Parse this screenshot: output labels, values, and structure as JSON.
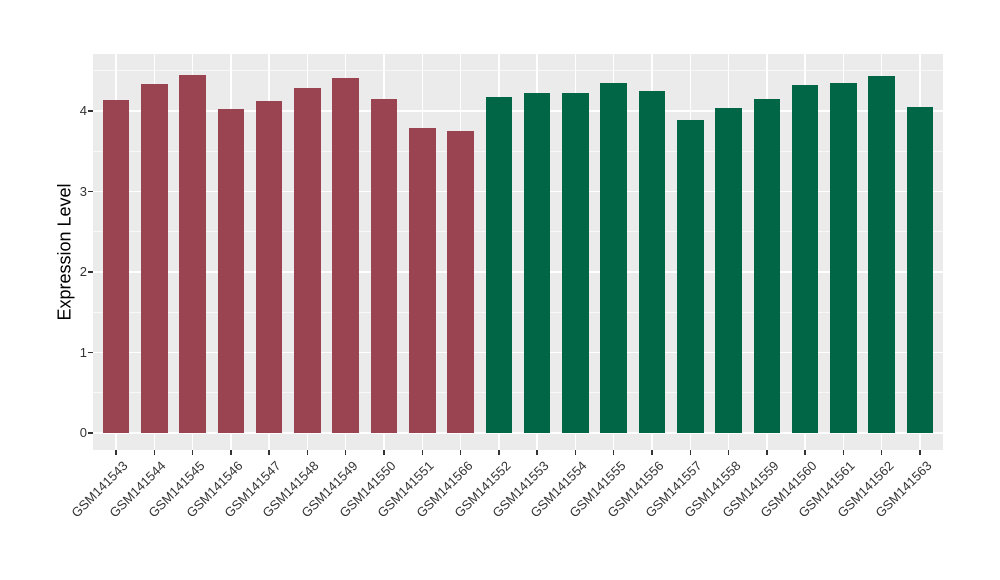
{
  "chart_data": {
    "type": "bar",
    "title": "",
    "xlabel": "",
    "ylabel": "Expression Level",
    "ylim": [
      0,
      4.7
    ],
    "yticks": [
      0,
      1,
      2,
      3,
      4
    ],
    "grid": true,
    "legend": "none",
    "panel_background": "#EBEBEB",
    "gridline_color": "#FFFFFF",
    "categories": [
      "GSM141543",
      "GSM141544",
      "GSM141545",
      "GSM141546",
      "GSM141547",
      "GSM141548",
      "GSM141549",
      "GSM141550",
      "GSM141551",
      "GSM141566",
      "GSM141552",
      "GSM141553",
      "GSM141554",
      "GSM141555",
      "GSM141556",
      "GSM141557",
      "GSM141558",
      "GSM141559",
      "GSM141560",
      "GSM141561",
      "GSM141562",
      "GSM141563"
    ],
    "values": [
      4.14,
      4.33,
      4.45,
      4.03,
      4.13,
      4.28,
      4.41,
      4.15,
      3.79,
      3.75,
      4.17,
      4.23,
      4.22,
      4.35,
      4.25,
      3.89,
      4.04,
      4.15,
      4.32,
      4.35,
      4.43,
      4.05
    ],
    "groups": [
      "group1",
      "group1",
      "group1",
      "group1",
      "group1",
      "group1",
      "group1",
      "group1",
      "group1",
      "group1",
      "group2",
      "group2",
      "group2",
      "group2",
      "group2",
      "group2",
      "group2",
      "group2",
      "group2",
      "group2",
      "group2",
      "group2"
    ],
    "group_colors": {
      "group1": "#9A4351",
      "group2": "#006646"
    }
  }
}
